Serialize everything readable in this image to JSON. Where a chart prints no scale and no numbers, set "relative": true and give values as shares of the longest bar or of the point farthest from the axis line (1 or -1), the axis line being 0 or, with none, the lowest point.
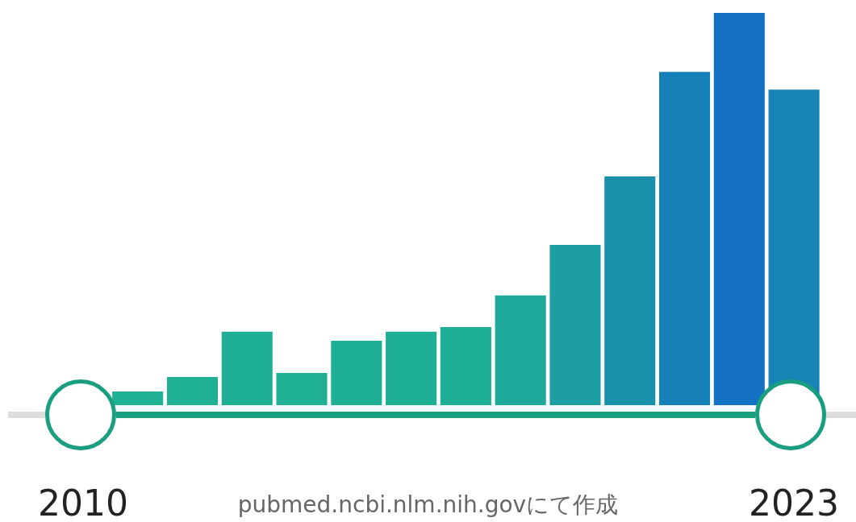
{
  "chart_data": {
    "type": "bar",
    "relative": true,
    "categories": [
      "2010",
      null,
      null,
      null,
      null,
      null,
      null,
      null,
      null,
      null,
      null,
      null,
      null,
      "2023"
    ],
    "values": [
      null,
      0.037,
      0.074,
      0.189,
      0.084,
      0.166,
      0.189,
      0.201,
      0.281,
      0.41,
      0.584,
      0.85,
      1,
      0.805
    ],
    "colors": [
      "#20b094",
      "#20b094",
      "#20b094",
      "#1faf95",
      "#20b094",
      "#1faf95",
      "#1faf95",
      "#1eae96",
      "#1ea89a",
      "#1c9ea2",
      "#1990ac",
      "#1680b8",
      "#1370c2",
      "#1684b4"
    ],
    "annotations": [
      "pubmed.ncbi.nlm.nih.govにて作成"
    ]
  }
}
